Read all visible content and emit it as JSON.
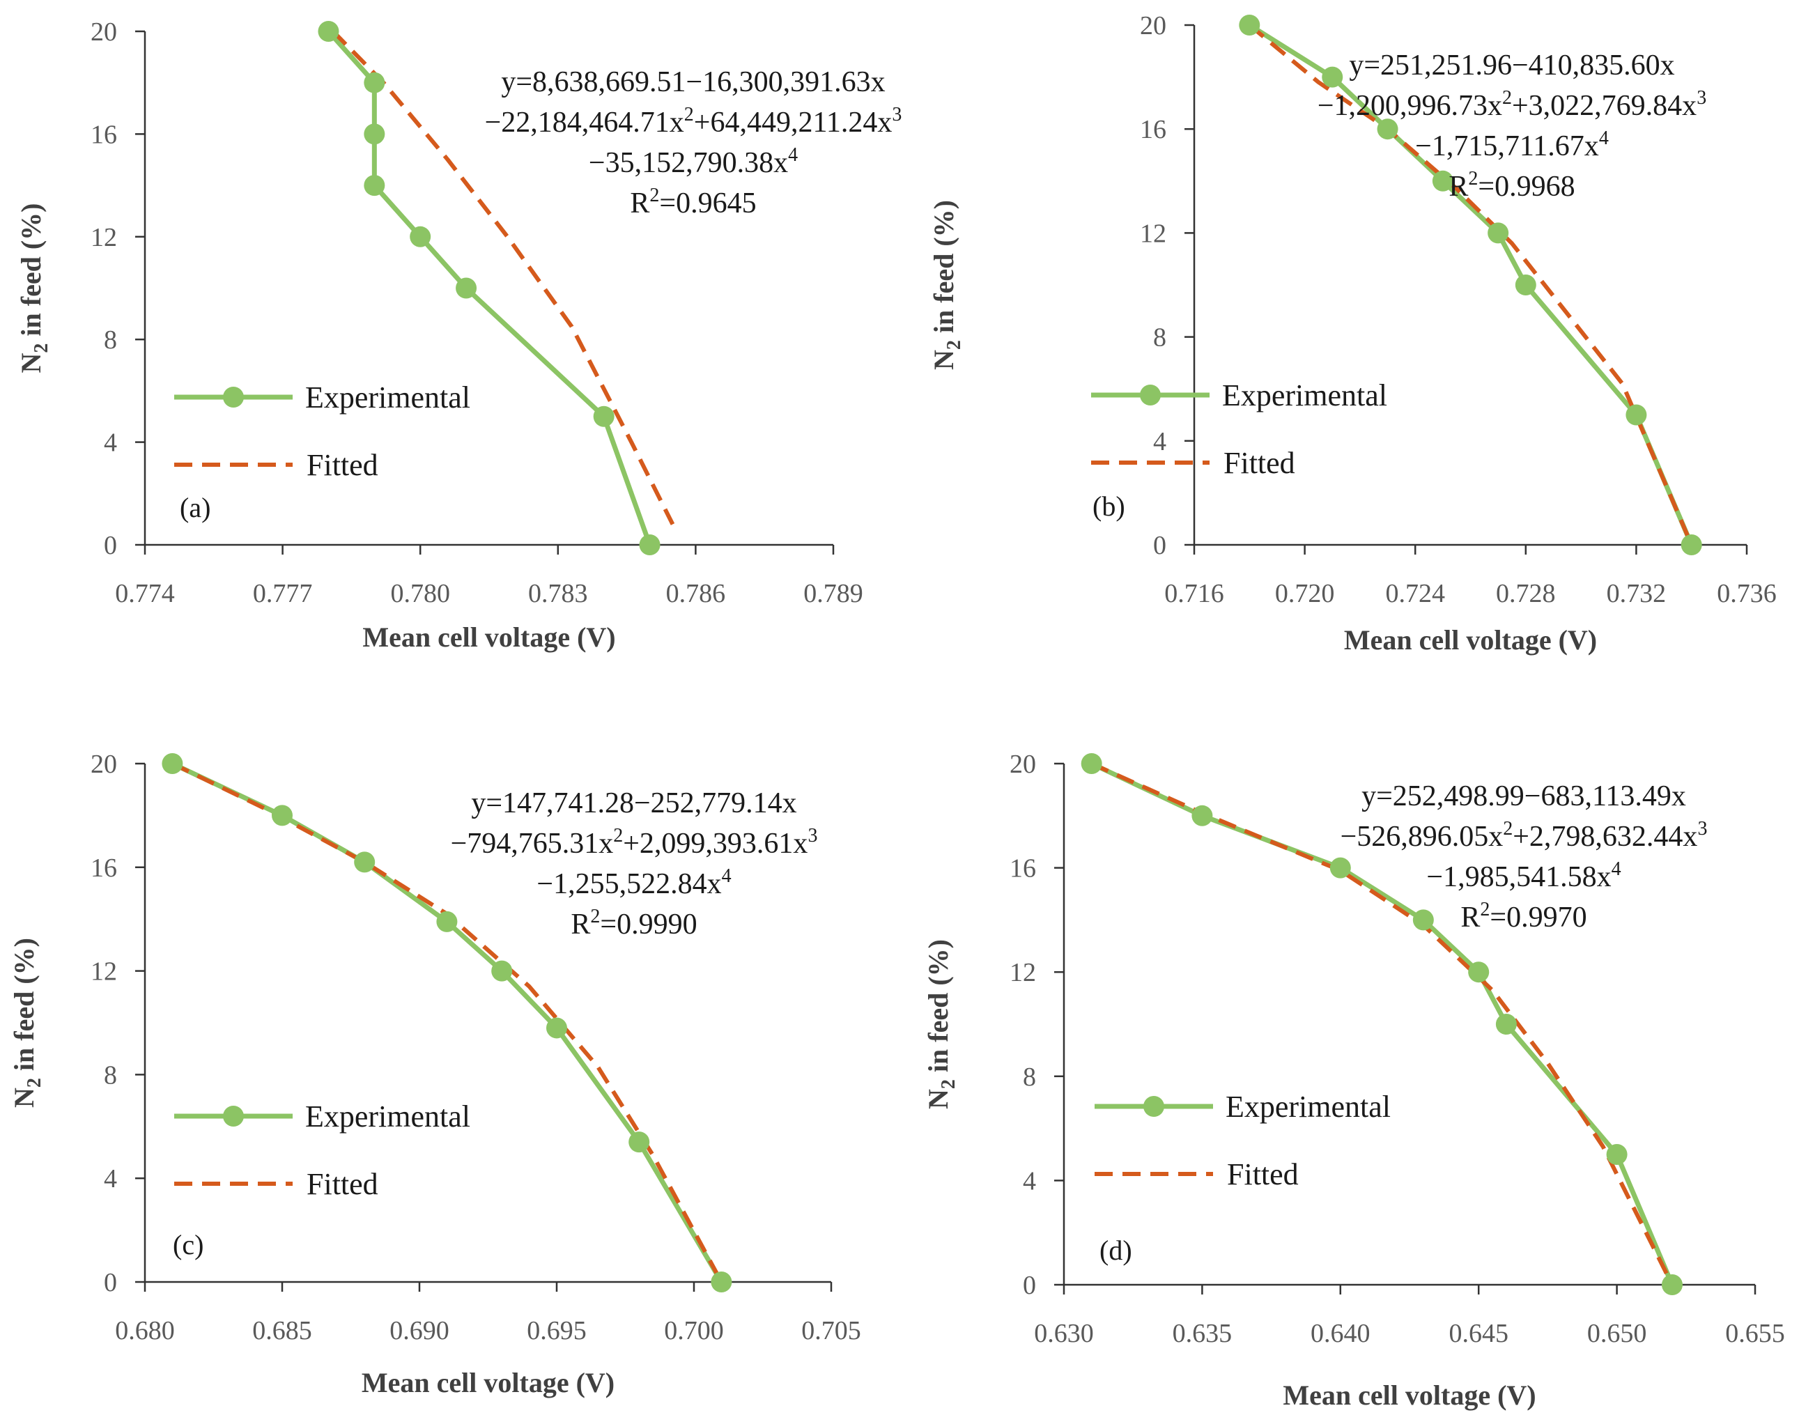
{
  "chart_data": [
    {
      "type": "line",
      "panel_label": "(a)",
      "xlabel": "Mean cell voltage (V)",
      "ylabel": "N2 in feed (%)",
      "ylabel_parts": [
        "N",
        "2",
        " in feed (%)"
      ],
      "xlim": [
        0.774,
        0.789
      ],
      "ylim": [
        0,
        20
      ],
      "x_ticks": [
        "0.774",
        "0.777",
        "0.780",
        "0.783",
        "0.786",
        "0.789"
      ],
      "y_ticks": [
        "0",
        "4",
        "8",
        "12",
        "16",
        "20"
      ],
      "legend": [
        "Experimental",
        "Fitted"
      ],
      "legend_position": "left",
      "equation": {
        "line1": "y=8,638,669.51−16,300,391.63x",
        "line2": [
          "−22,184,464.71x",
          "2",
          "+64,449,211.24x",
          "3"
        ],
        "line3": [
          "−35,152,790.38x",
          "4"
        ],
        "r2": [
          "R",
          "2",
          "=0.9645"
        ]
      },
      "series": [
        {
          "name": "Experimental",
          "color": "#8cc464",
          "x": [
            0.778,
            0.779,
            0.779,
            0.779,
            0.78,
            0.781,
            0.784,
            0.785
          ],
          "y": [
            20,
            18,
            16,
            14,
            12,
            10,
            5,
            0
          ]
        },
        {
          "name": "Fitted",
          "color": "#d55a1c",
          "x": [
            0.7781,
            0.7792,
            0.7806,
            0.7819,
            0.7833,
            0.7846,
            0.7855
          ],
          "y": [
            20,
            18,
            15,
            12,
            8.5,
            4,
            0.8
          ]
        }
      ]
    },
    {
      "type": "line",
      "panel_label": "(b)",
      "xlabel": "Mean cell voltage (V)",
      "ylabel": "N2 in feed (%)",
      "ylabel_parts": [
        "N",
        "2",
        " in feed (%)"
      ],
      "xlim": [
        0.716,
        0.736
      ],
      "ylim": [
        0,
        20
      ],
      "x_ticks": [
        "0.716",
        "0.720",
        "0.724",
        "0.728",
        "0.732",
        "0.736"
      ],
      "y_ticks": [
        "0",
        "4",
        "8",
        "12",
        "16",
        "20"
      ],
      "legend": [
        "Experimental",
        "Fitted"
      ],
      "legend_position": "left",
      "equation": {
        "line1": "y=251,251.96−410,835.60x",
        "line2": [
          "−1,200,996.73x",
          "2",
          "+3,022,769.84x",
          "3"
        ],
        "line3": [
          "−1,715,711.67x",
          "4"
        ],
        "r2": [
          "R",
          "2",
          "=0.9968"
        ]
      },
      "series": [
        {
          "name": "Experimental",
          "color": "#8cc464",
          "x": [
            0.718,
            0.721,
            0.723,
            0.725,
            0.727,
            0.728,
            0.732,
            0.734
          ],
          "y": [
            20,
            18,
            16,
            14,
            12,
            10,
            5,
            0
          ]
        },
        {
          "name": "Fitted",
          "color": "#d55a1c",
          "x": [
            0.718,
            0.7205,
            0.723,
            0.7255,
            0.7275,
            0.7295,
            0.7315,
            0.734
          ],
          "y": [
            20,
            17.8,
            16,
            13.7,
            11.6,
            8.9,
            6.2,
            0
          ]
        }
      ]
    },
    {
      "type": "line",
      "panel_label": "(c)",
      "xlabel": "Mean cell voltage (V)",
      "ylabel": "N2 in feed (%)",
      "ylabel_parts": [
        "N",
        "2",
        " in feed (%)"
      ],
      "xlim": [
        0.68,
        0.705
      ],
      "ylim": [
        0,
        20
      ],
      "x_ticks": [
        "0.680",
        "0.685",
        "0.690",
        "0.695",
        "0.700",
        "0.705"
      ],
      "y_ticks": [
        "0",
        "4",
        "8",
        "12",
        "16",
        "20"
      ],
      "legend": [
        "Experimental",
        "Fitted"
      ],
      "legend_position": "left",
      "equation": {
        "line1": "y=147,741.28−252,779.14x",
        "line2": [
          "−794,765.31x",
          "2",
          "+2,099,393.61x",
          "3"
        ],
        "line3": [
          "−1,255,522.84x",
          "4"
        ],
        "r2": [
          "R",
          "2",
          "=0.9990"
        ]
      },
      "series": [
        {
          "name": "Experimental",
          "color": "#8cc464",
          "x": [
            0.681,
            0.685,
            0.688,
            0.691,
            0.693,
            0.695,
            0.698,
            0.701
          ],
          "y": [
            20,
            18,
            16.2,
            13.9,
            12,
            9.8,
            5.4,
            0
          ]
        },
        {
          "name": "Fitted",
          "color": "#d55a1c",
          "x": [
            0.681,
            0.6845,
            0.688,
            0.691,
            0.694,
            0.6965,
            0.6985,
            0.701
          ],
          "y": [
            20,
            18.2,
            16.2,
            14.2,
            11.4,
            8.3,
            4.9,
            0
          ]
        }
      ]
    },
    {
      "type": "line",
      "panel_label": "(d)",
      "xlabel": "Mean cell voltage (V)",
      "ylabel": "N2 in feed (%)",
      "ylabel_parts": [
        "N",
        "2",
        " in feed (%)"
      ],
      "xlim": [
        0.63,
        0.655
      ],
      "ylim": [
        0,
        20
      ],
      "x_ticks": [
        "0.630",
        "0.635",
        "0.640",
        "0.645",
        "0.650",
        "0.655"
      ],
      "y_ticks": [
        "0",
        "4",
        "8",
        "12",
        "16",
        "20"
      ],
      "legend": [
        "Experimental",
        "Fitted"
      ],
      "legend_position": "left",
      "equation": {
        "line1": "y=252,498.99−683,113.49x",
        "line2": [
          "−526,896.05x",
          "2",
          "+2,798,632.44x",
          "3"
        ],
        "line3": [
          "−1,985,541.58x",
          "4"
        ],
        "r2": [
          "R",
          "2",
          "=0.9970"
        ]
      },
      "series": [
        {
          "name": "Experimental",
          "color": "#8cc464",
          "x": [
            0.631,
            0.635,
            0.64,
            0.643,
            0.645,
            0.646,
            0.65,
            0.652
          ],
          "y": [
            20,
            18,
            16,
            14,
            12,
            10,
            5,
            0
          ]
        },
        {
          "name": "Fitted",
          "color": "#d55a1c",
          "x": [
            0.631,
            0.635,
            0.64,
            0.643,
            0.6455,
            0.6475,
            0.6495,
            0.652
          ],
          "y": [
            20,
            18.1,
            15.9,
            13.8,
            11.3,
            8.5,
            5.3,
            0
          ]
        }
      ]
    }
  ]
}
